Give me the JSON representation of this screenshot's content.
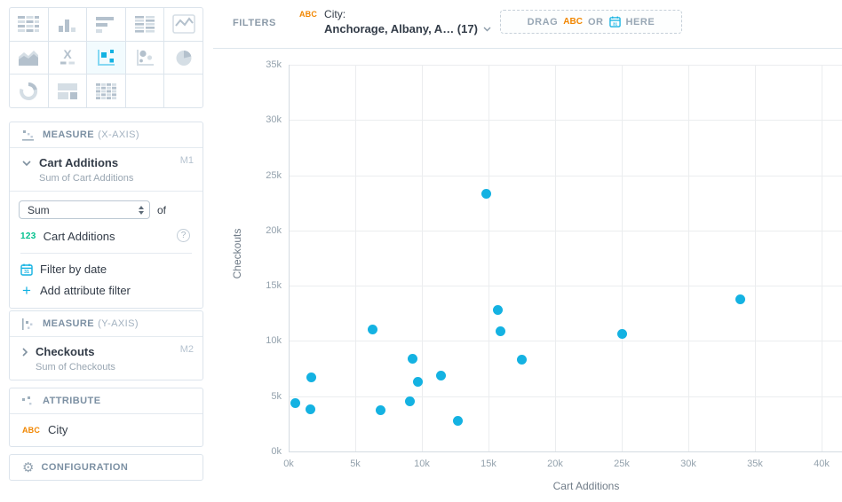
{
  "visualization_picker": {
    "selected": "scatter-plot",
    "items": [
      "table",
      "column-chart",
      "bar-chart",
      "pivot-table",
      "line-chart",
      "area-chart",
      "headline",
      "scatter-plot",
      "bubble-chart",
      "pie-chart",
      "donut-chart",
      "treemap",
      "heatmap"
    ]
  },
  "filters_bar": {
    "label": "FILTERS",
    "filter": {
      "type_icon_label": "ABC",
      "name": "City:",
      "value": "Anchorage, Albany, A… (17)"
    },
    "dropzone": {
      "drag": "DRAG",
      "abc": "ABC",
      "or": "OR",
      "here": "HERE"
    }
  },
  "panels": {
    "measure_x": {
      "header_title": "MEASURE",
      "header_suffix": "(X-AXIS)",
      "item": {
        "title": "Cart Additions",
        "subtitle": "Sum of Cart Additions",
        "tag": "M1"
      },
      "aggregation": {
        "selected": "Sum",
        "of_label": "of"
      },
      "fact": {
        "icon_label": "123",
        "label": "Cart Additions"
      },
      "actions": [
        {
          "icon": "calendar-icon",
          "label": "Filter by date"
        },
        {
          "icon": "plus-icon",
          "label": "Add attribute filter"
        }
      ]
    },
    "measure_y": {
      "header_title": "MEASURE",
      "header_suffix": "(Y-AXIS)",
      "item": {
        "title": "Checkouts",
        "subtitle": "Sum of Checkouts",
        "tag": "M2"
      }
    },
    "attribute": {
      "header_title": "ATTRIBUTE",
      "item": {
        "icon_label": "ABC",
        "label": "City"
      }
    },
    "configuration": {
      "header_title": "CONFIGURATION"
    }
  },
  "chart_data": {
    "type": "scatter",
    "title": "",
    "xlabel": "Cart Additions",
    "ylabel": "Checkouts",
    "xlim": [
      0,
      41500
    ],
    "ylim": [
      0,
      35000
    ],
    "xticks": [
      0,
      5000,
      10000,
      15000,
      20000,
      25000,
      30000,
      35000,
      40000
    ],
    "yticks": [
      0,
      5000,
      10000,
      15000,
      20000,
      25000,
      30000,
      35000
    ],
    "grid": true,
    "legend": false,
    "marker_color": "#14b2e2",
    "points": [
      {
        "x": 500,
        "y": 4400
      },
      {
        "x": 1700,
        "y": 6700
      },
      {
        "x": 1600,
        "y": 3800
      },
      {
        "x": 6300,
        "y": 11000
      },
      {
        "x": 6900,
        "y": 3700
      },
      {
        "x": 9100,
        "y": 4500
      },
      {
        "x": 9300,
        "y": 8400
      },
      {
        "x": 9700,
        "y": 6300
      },
      {
        "x": 11400,
        "y": 6900
      },
      {
        "x": 12700,
        "y": 2800
      },
      {
        "x": 14800,
        "y": 23300
      },
      {
        "x": 15700,
        "y": 12800
      },
      {
        "x": 15900,
        "y": 10900
      },
      {
        "x": 17500,
        "y": 8300
      },
      {
        "x": 25000,
        "y": 10600
      },
      {
        "x": 33900,
        "y": 13800
      }
    ]
  }
}
